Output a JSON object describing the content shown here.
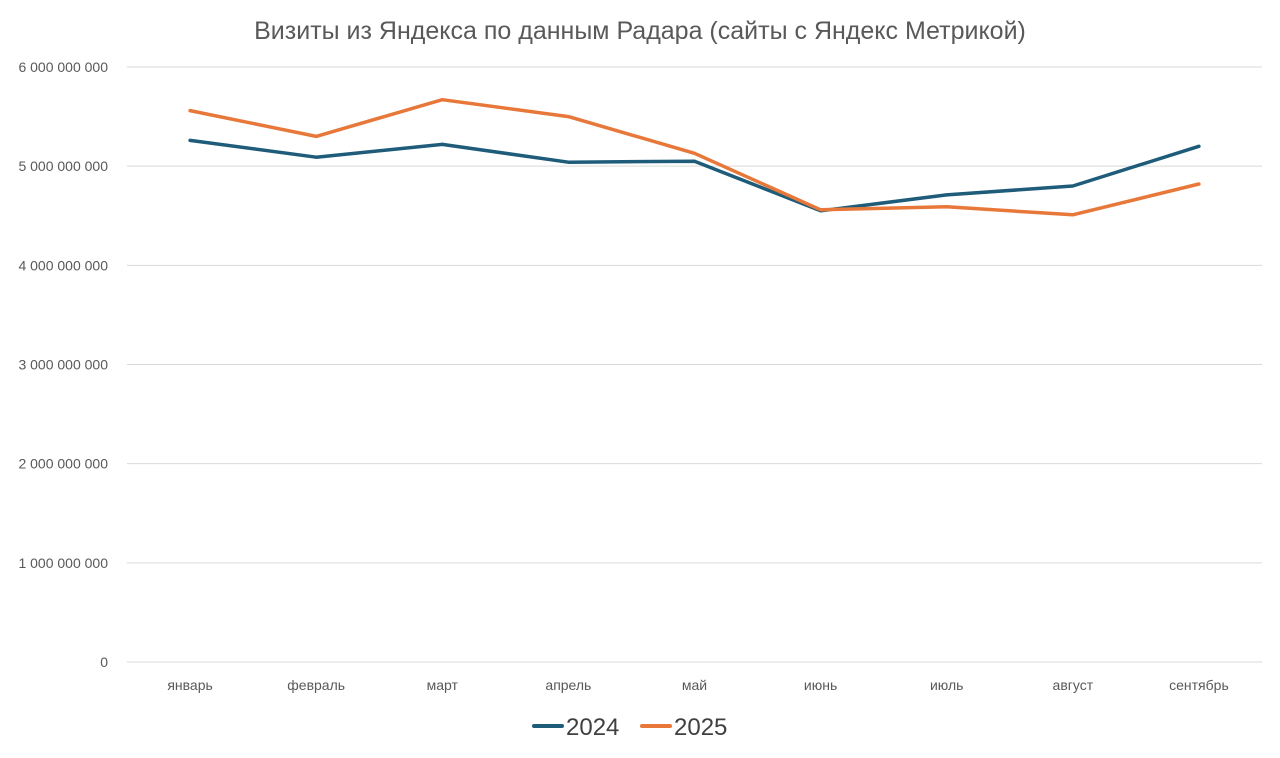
{
  "chart_data": {
    "type": "line",
    "title": "Визиты из Яндекса по данным Радара (сайты с Яндекс Метрикой)",
    "xlabel": "",
    "ylabel": "",
    "categories": [
      "январь",
      "февраль",
      "март",
      "апрель",
      "май",
      "июнь",
      "июль",
      "август",
      "сентябрь"
    ],
    "ylim": [
      0,
      6000000000
    ],
    "yticks": [
      0,
      1000000000,
      2000000000,
      3000000000,
      4000000000,
      5000000000,
      6000000000
    ],
    "ytick_labels": [
      "0",
      "1 000 000 000",
      "2 000 000 000",
      "3 000 000 000",
      "4 000 000 000",
      "5 000 000 000",
      "6 000 000 000"
    ],
    "grid": true,
    "legend_position": "bottom",
    "series": [
      {
        "name": "2024",
        "color": "#1f5c7a",
        "values": [
          5260000000,
          5090000000,
          5220000000,
          5040000000,
          5050000000,
          4550000000,
          4710000000,
          4800000000,
          5200000000
        ]
      },
      {
        "name": "2025",
        "color": "#e8773a",
        "values": [
          5560000000,
          5300000000,
          5670000000,
          5500000000,
          5130000000,
          4560000000,
          4590000000,
          4510000000,
          4820000000
        ]
      }
    ]
  }
}
